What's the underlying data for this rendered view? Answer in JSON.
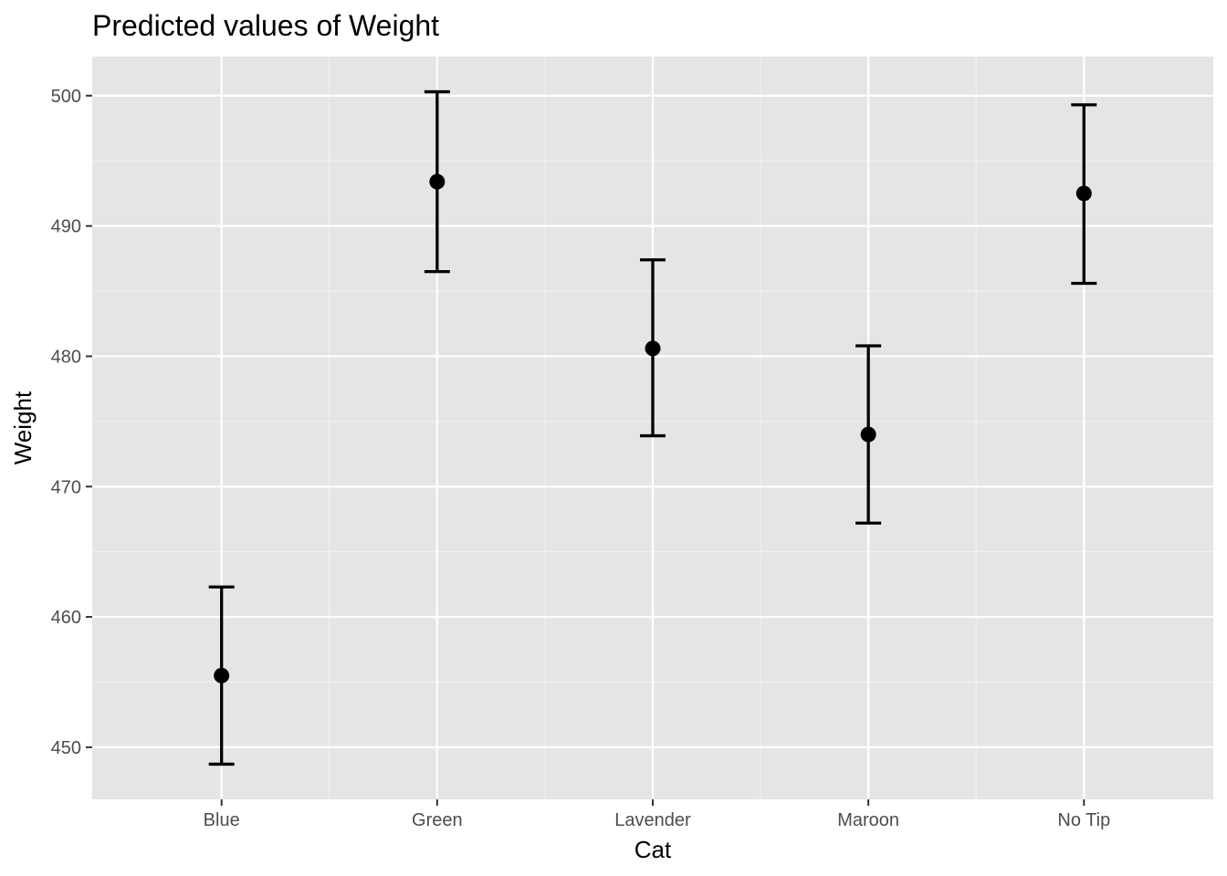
{
  "chart_data": {
    "type": "scatter",
    "title": "Predicted values of Weight",
    "xlabel": "Cat",
    "ylabel": "Weight",
    "categories": [
      "Blue",
      "Green",
      "Lavender",
      "Maroon",
      "No Tip"
    ],
    "series": [
      {
        "values": [
          455.5,
          493.4,
          480.6,
          474.0,
          492.5
        ],
        "lower": [
          448.7,
          486.5,
          473.9,
          467.2,
          485.6
        ],
        "upper": [
          462.3,
          500.3,
          487.4,
          480.8,
          499.3
        ]
      }
    ],
    "yticks": [
      450,
      460,
      470,
      480,
      490,
      500
    ],
    "ylim": [
      446,
      503
    ],
    "grid": true,
    "legend": "none",
    "colors": {
      "panel": "#e5e5e5",
      "grid_major": "#ffffff",
      "grid_minor": "#f2f2f2",
      "mark": "#000000",
      "tick_text": "#4d4d4d"
    }
  }
}
